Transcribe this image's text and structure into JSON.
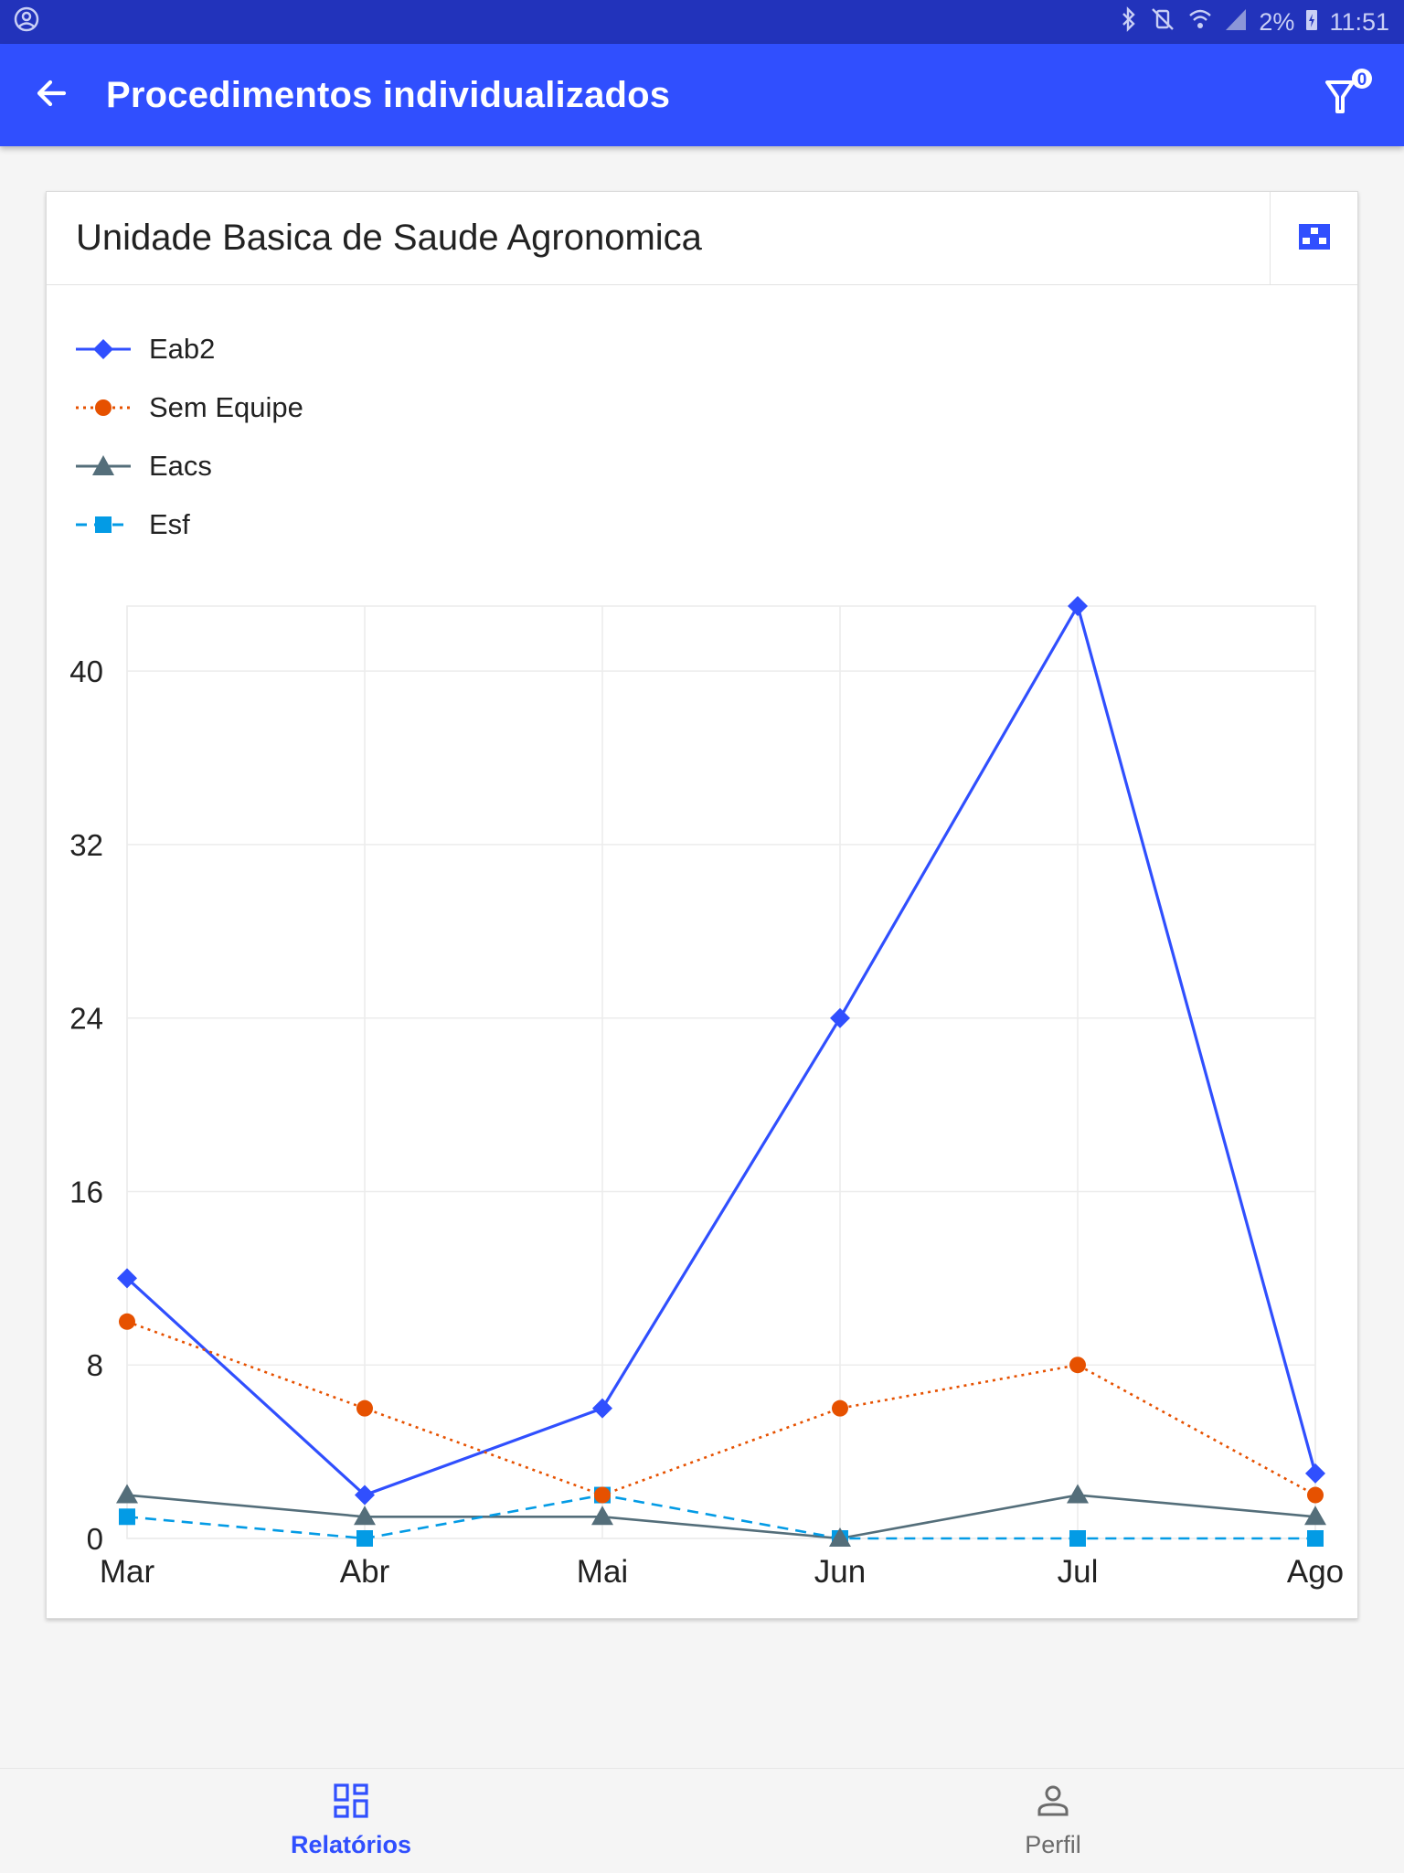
{
  "status_bar": {
    "battery": "2%",
    "time": "11:51"
  },
  "app_bar": {
    "title": "Procedimentos individualizados",
    "filter_count": "0"
  },
  "card": {
    "title": "Unidade Basica de Saude Agronomica"
  },
  "colors": {
    "brand": "#304ffe",
    "eab2": "#304ffe",
    "sem_equipe": "#e65100",
    "eacs": "#546e7a",
    "esf": "#039be5"
  },
  "chart_data": {
    "type": "line",
    "categories": [
      "Mar",
      "Abr",
      "Mai",
      "Jun",
      "Jul",
      "Ago"
    ],
    "y_ticks": [
      "0",
      "8",
      "16",
      "24",
      "32",
      "40"
    ],
    "ylim": [
      0,
      43
    ],
    "grid": true,
    "legend_position": "top-left",
    "series": [
      {
        "name": "Eab2",
        "values": [
          12,
          2,
          6,
          24,
          43,
          3
        ],
        "color": "#304ffe",
        "marker": "diamond",
        "line": "solid"
      },
      {
        "name": "Sem Equipe",
        "values": [
          10,
          6,
          2,
          6,
          8,
          2
        ],
        "color": "#e65100",
        "marker": "circle",
        "line": "dotted"
      },
      {
        "name": "Eacs",
        "values": [
          2,
          1,
          1,
          0,
          2,
          1
        ],
        "color": "#546e7a",
        "marker": "triangle",
        "line": "solid"
      },
      {
        "name": "Esf",
        "values": [
          1,
          0,
          2,
          0,
          0,
          0
        ],
        "color": "#039be5",
        "marker": "square",
        "line": "dashed"
      }
    ]
  },
  "bottom_nav": {
    "items": [
      {
        "label": "Relatórios",
        "icon": "dashboard-icon",
        "active": true
      },
      {
        "label": "Perfil",
        "icon": "person-icon",
        "active": false
      }
    ]
  }
}
